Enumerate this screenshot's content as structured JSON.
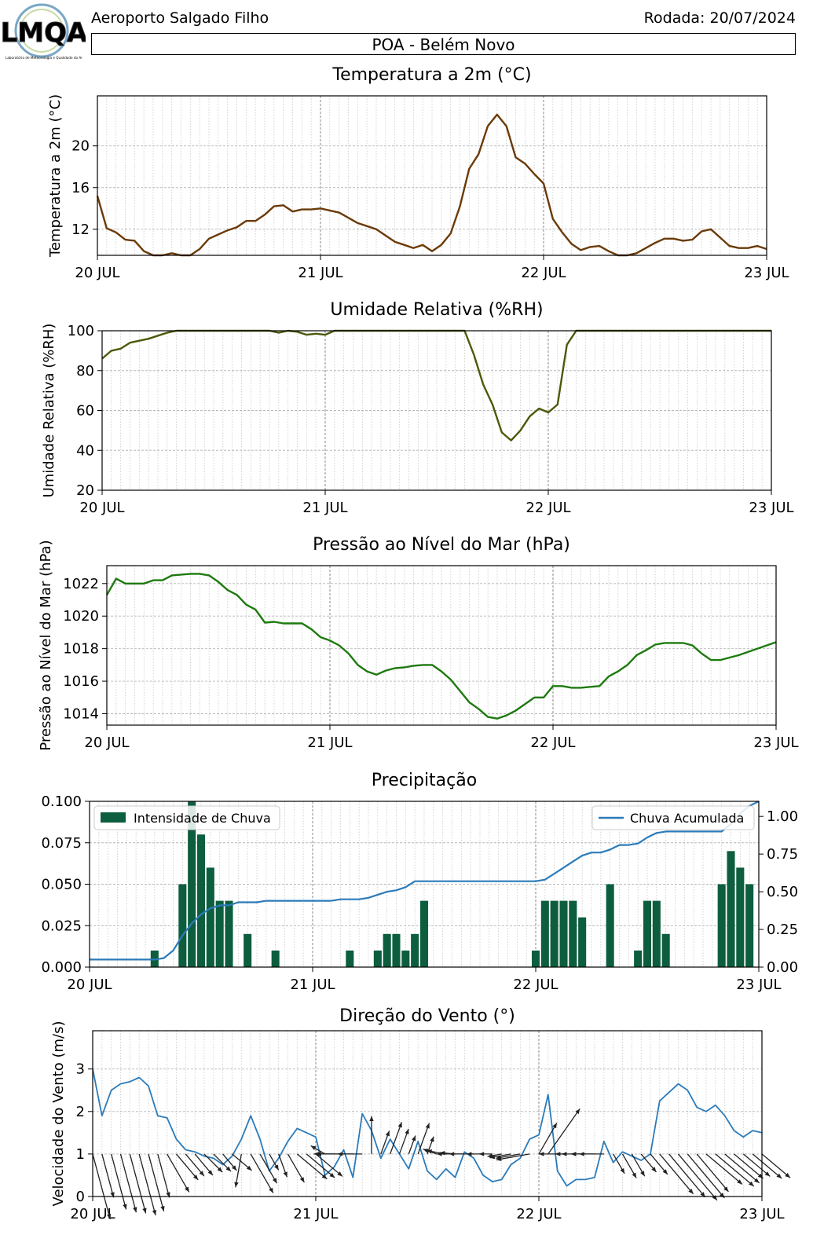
{
  "header": {
    "logo_text": "LMQA",
    "logo_subtext": "Laboratório de Meteorologia e Qualidade do Ar",
    "location": "Aeroporto Salgado Filho",
    "run_label": "Rodada: 20/07/2024",
    "station": "POA - Belém Novo"
  },
  "x_ticks": [
    "20 JUL",
    "21 JUL",
    "22 JUL",
    "23 JUL"
  ],
  "chart_data": [
    {
      "type": "line",
      "title": "Temperatura a 2m (°C)",
      "ylabel": "Temperatura a 2m (°C)",
      "xlabel": "",
      "ylim": [
        9.5,
        24.8
      ],
      "yticks": [
        "12",
        "16",
        "20"
      ],
      "color": "#6b3a07",
      "x_range_hours": [
        0,
        72
      ],
      "values": [
        15.2,
        12.1,
        11.7,
        11.0,
        10.9,
        9.9,
        9.4,
        9.1,
        9.7,
        9.4,
        9.4,
        10.1,
        11.1,
        11.5,
        11.9,
        12.2,
        12.8,
        12.8,
        13.4,
        14.2,
        14.3,
        13.7,
        13.9,
        13.9,
        14.0,
        13.8,
        13.6,
        13.1,
        12.6,
        12.3,
        12.0,
        11.4,
        10.8,
        10.5,
        10.2,
        10.5,
        9.9,
        10.5,
        11.6,
        14.2,
        17.8,
        19.2,
        21.9,
        23.0,
        21.9,
        18.9,
        18.3,
        17.3,
        16.4,
        13.0,
        11.7,
        10.6,
        10.0,
        10.3,
        10.4,
        9.9,
        9.2,
        9.1,
        9.7,
        10.2,
        10.7,
        11.1,
        11.1,
        10.9,
        11.0,
        11.8,
        12.0,
        11.2,
        10.4,
        10.2,
        10.2,
        10.4,
        10.1
      ]
    },
    {
      "type": "line",
      "title": "Umidade Relativa (%RH)",
      "ylabel": "Umidade Relativa (%RH)",
      "xlabel": "",
      "ylim": [
        20,
        100
      ],
      "yticks": [
        "20",
        "40",
        "60",
        "80",
        "100"
      ],
      "color": "#4a5a0a",
      "x_range_hours": [
        0,
        72
      ],
      "values": [
        86,
        90,
        91,
        94,
        95,
        96,
        97.5,
        99,
        100,
        100,
        100,
        100,
        100,
        100,
        100,
        100,
        100,
        100,
        100,
        99,
        100,
        99.5,
        98,
        98.5,
        98,
        100,
        100,
        100,
        100,
        100,
        100,
        100,
        100,
        100,
        100,
        100,
        100,
        100,
        100,
        100,
        88,
        73,
        63,
        49,
        45,
        50,
        57,
        61,
        59,
        63,
        93,
        100,
        100,
        100,
        100,
        100,
        100,
        100,
        100,
        100,
        100,
        100,
        100,
        100,
        100,
        100,
        100,
        100,
        100,
        100,
        100,
        100,
        100
      ]
    },
    {
      "type": "line",
      "title": "Pressão ao Nível do Mar (hPa)",
      "ylabel": "Pressão ao Nível do Mar (hPa)",
      "xlabel": "",
      "ylim": [
        1013.3,
        1023.1
      ],
      "yticks": [
        "1014",
        "1016",
        "1018",
        "1020",
        "1022"
      ],
      "color": "#1d7a0e",
      "x_range_hours": [
        0,
        72
      ],
      "values": [
        1021.3,
        1022.3,
        1022.0,
        1022.0,
        1022.0,
        1022.2,
        1022.2,
        1022.5,
        1022.55,
        1022.6,
        1022.6,
        1022.5,
        1022.1,
        1021.6,
        1021.3,
        1020.7,
        1020.4,
        1019.6,
        1019.65,
        1019.55,
        1019.55,
        1019.55,
        1019.2,
        1018.7,
        1018.5,
        1018.2,
        1017.7,
        1017.0,
        1016.6,
        1016.4,
        1016.65,
        1016.8,
        1016.85,
        1016.95,
        1017.0,
        1017.0,
        1016.6,
        1016.1,
        1015.4,
        1014.7,
        1014.3,
        1013.8,
        1013.7,
        1013.9,
        1014.2,
        1014.6,
        1015.0,
        1015.0,
        1015.7,
        1015.7,
        1015.6,
        1015.6,
        1015.65,
        1015.7,
        1016.3,
        1016.6,
        1017.0,
        1017.6,
        1017.9,
        1018.25,
        1018.35,
        1018.35,
        1018.35,
        1018.2,
        1017.7,
        1017.3,
        1017.3,
        1017.45,
        1017.6,
        1017.8,
        1018.0,
        1018.2,
        1018.4
      ]
    },
    {
      "type": "bar",
      "title": "Precipitação",
      "xlabel": "",
      "ylim": [
        0,
        0.1
      ],
      "yticks": [
        "0.000",
        "0.025",
        "0.050",
        "0.075",
        "0.100"
      ],
      "y2lim": [
        0,
        1.1
      ],
      "y2ticks": [
        "0.00",
        "0.25",
        "0.50",
        "0.75",
        "1.00"
      ],
      "legend_bar": "Intensidade de Chuva",
      "legend_line": "Chuva Acumulada",
      "bar_color": "#0d5e3e",
      "line_color": "#2b7bba",
      "x_range_hours": [
        0,
        72
      ],
      "bars": [
        0,
        0,
        0,
        0,
        0,
        0,
        0,
        0.01,
        0,
        0,
        0.05,
        0.1,
        0.08,
        0.06,
        0.04,
        0.04,
        0,
        0.02,
        0,
        0,
        0.01,
        0,
        0,
        0,
        0,
        0,
        0,
        0,
        0.01,
        0,
        0,
        0.01,
        0.02,
        0.02,
        0.01,
        0.02,
        0.04,
        0,
        0,
        0,
        0,
        0,
        0,
        0,
        0,
        0,
        0,
        0,
        0.01,
        0.04,
        0.04,
        0.04,
        0.04,
        0.03,
        0,
        0,
        0.05,
        0,
        0,
        0.01,
        0.04,
        0.04,
        0.02,
        0,
        0,
        0,
        0,
        0,
        0.05,
        0.07,
        0.06,
        0.05,
        0
      ],
      "cumulative": [
        0.05,
        0.05,
        0.05,
        0.05,
        0.05,
        0.05,
        0.05,
        0.05,
        0.06,
        0.11,
        0.21,
        0.29,
        0.35,
        0.39,
        0.41,
        0.41,
        0.43,
        0.43,
        0.43,
        0.44,
        0.44,
        0.44,
        0.44,
        0.44,
        0.44,
        0.44,
        0.44,
        0.45,
        0.45,
        0.45,
        0.46,
        0.48,
        0.5,
        0.51,
        0.53,
        0.57,
        0.57,
        0.57,
        0.57,
        0.57,
        0.57,
        0.57,
        0.57,
        0.57,
        0.57,
        0.57,
        0.57,
        0.57,
        0.57,
        0.58,
        0.62,
        0.66,
        0.7,
        0.74,
        0.76,
        0.76,
        0.78,
        0.81,
        0.81,
        0.82,
        0.86,
        0.89,
        0.9,
        0.9,
        0.9,
        0.9,
        0.9,
        0.9,
        0.9,
        0.95,
        1.02,
        1.07,
        1.11
      ]
    },
    {
      "type": "line",
      "title": "Direção do Vento (°)",
      "ylabel": "Velocidade do Vento (m/s)",
      "xlabel": "",
      "ylim": [
        0,
        3.9
      ],
      "yticks": [
        "0",
        "1",
        "2",
        "3"
      ],
      "color": "#2b7bba",
      "x_range_hours": [
        0,
        72
      ],
      "values": [
        3.0,
        1.9,
        2.5,
        2.65,
        2.7,
        2.8,
        2.6,
        1.9,
        1.85,
        1.35,
        1.1,
        1.05,
        0.95,
        0.9,
        0.75,
        0.95,
        1.35,
        1.9,
        1.35,
        0.6,
        0.9,
        1.3,
        1.6,
        1.5,
        1.4,
        0.5,
        0.7,
        1.1,
        0.45,
        1.95,
        1.55,
        0.9,
        1.35,
        1.0,
        0.65,
        1.3,
        0.6,
        0.4,
        0.65,
        0.45,
        1.05,
        0.9,
        0.5,
        0.35,
        0.4,
        0.75,
        0.9,
        1.35,
        1.45,
        2.4,
        0.6,
        0.25,
        0.4,
        0.4,
        0.45,
        1.3,
        0.8,
        1.05,
        0.95,
        0.85,
        1.0,
        2.25,
        2.45,
        2.65,
        2.5,
        2.1,
        2.0,
        2.15,
        1.9,
        1.55,
        1.4,
        1.55,
        1.5
      ],
      "directions_deg": [
        345,
        345,
        345,
        345,
        345,
        345,
        345,
        345,
        330,
        320,
        320,
        320,
        315,
        315,
        320,
        310,
        10,
        330,
        330,
        330,
        340,
        330,
        310,
        310,
        310,
        120,
        90,
        90,
        90,
        90,
        180,
        200,
        200,
        200,
        200,
        200,
        200,
        110,
        100,
        95,
        90,
        90,
        90,
        90,
        80,
        80,
        80,
        80,
        210,
        215,
        90,
        90,
        90,
        90,
        90,
        90,
        330,
        330,
        330,
        320,
        320,
        320,
        320,
        320,
        320,
        320,
        310,
        310,
        310,
        310,
        310,
        310,
        310
      ]
    }
  ]
}
